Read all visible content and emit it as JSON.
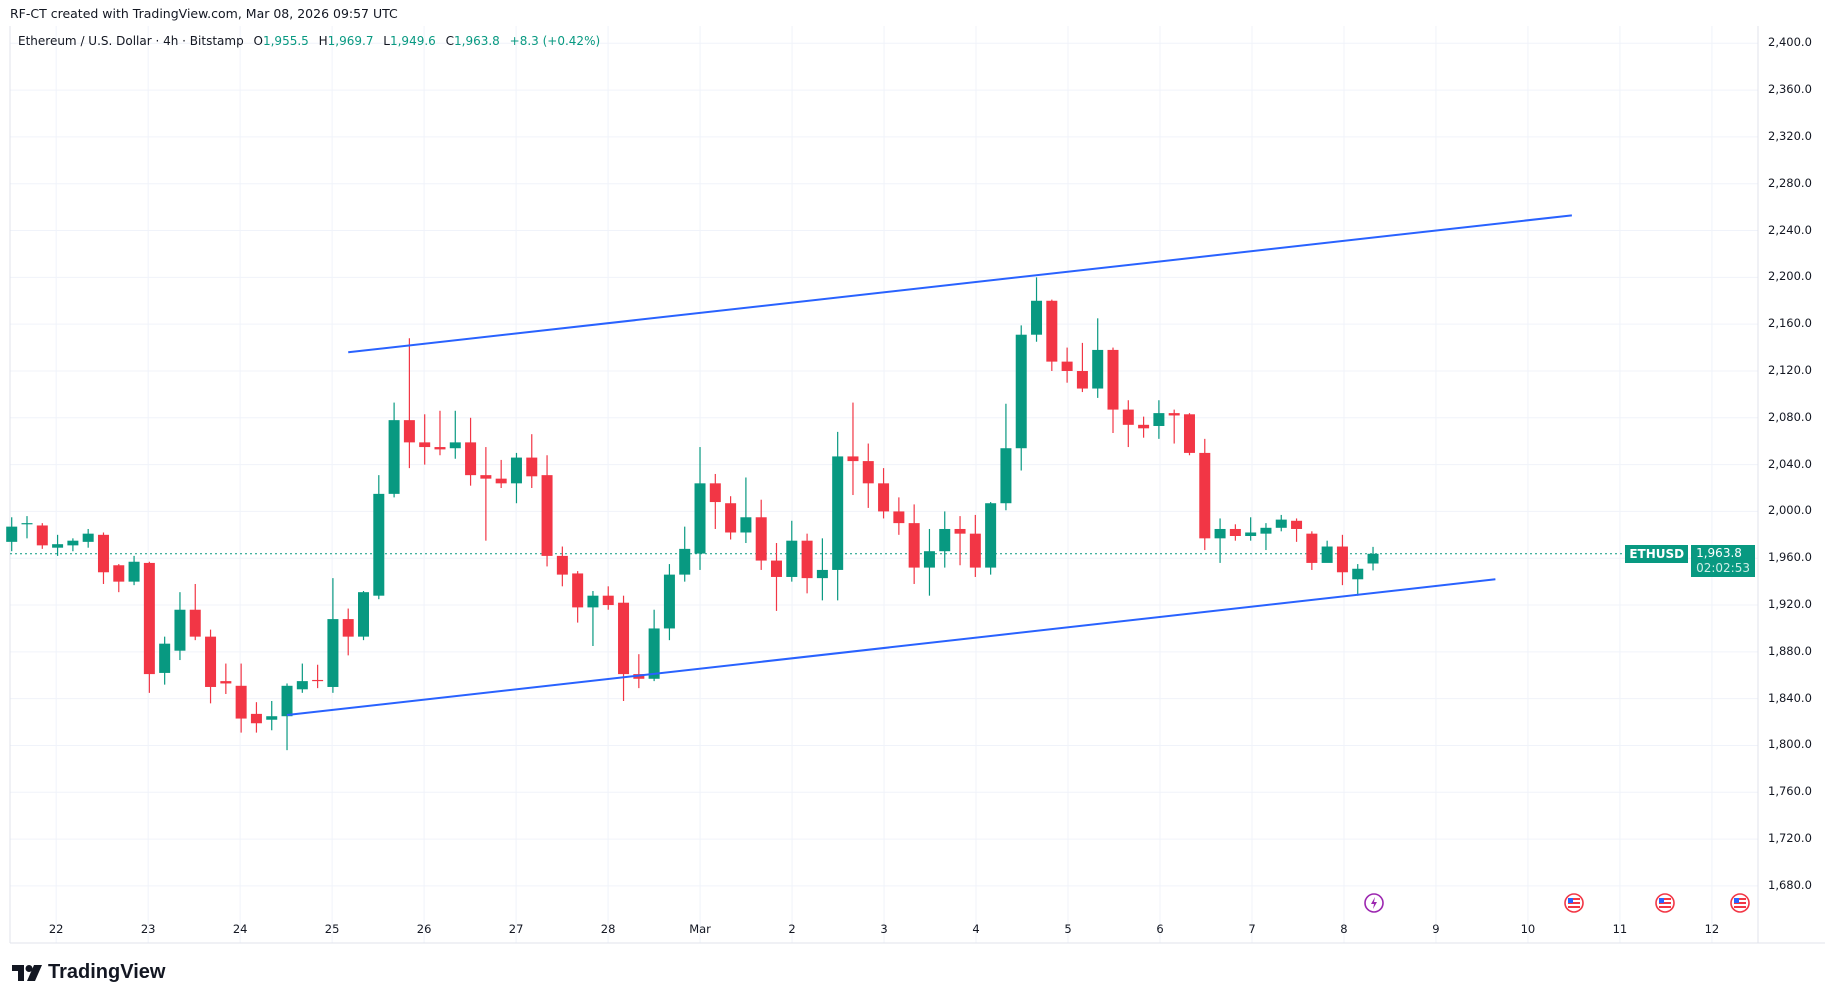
{
  "header": {
    "credit": "RF-CT created with TradingView.com, Mar 08, 2026 09:57 UTC"
  },
  "legend": {
    "symbol": "Ethereum / U.S. Dollar · 4h · Bitstamp",
    "open_label": "O",
    "open": "1,955.5",
    "high_label": "H",
    "high": "1,969.7",
    "low_label": "L",
    "low": "1,949.6",
    "close_label": "C",
    "close": "1,963.8",
    "change": "+8.3 (+0.42%)"
  },
  "price_tag": {
    "symbol": "ETHUSD",
    "price": "1,963.8",
    "countdown": "02:02:53"
  },
  "logo": {
    "text": "TradingView"
  },
  "colors": {
    "up": "#089981",
    "down": "#F23645",
    "trendline": "#2962FF",
    "grid": "#F0F3FA"
  },
  "icons": [
    "lightning-event-icon",
    "us-flag-icon",
    "us-flag-icon",
    "us-flag-icon"
  ],
  "chart_data": {
    "type": "candlestick",
    "interval": "4h",
    "last_price": 1963.8,
    "ylim": [
      1660,
      2420
    ],
    "y_ticks": [
      "2,400.0",
      "2,360.0",
      "2,320.0",
      "2,280.0",
      "2,240.0",
      "2,200.0",
      "2,160.0",
      "2,120.0",
      "2,080.0",
      "2,040.0",
      "2,000.0",
      "1,960.0",
      "1,920.0",
      "1,880.0",
      "1,840.0",
      "1,800.0",
      "1,760.0",
      "1,720.0",
      "1,680.0"
    ],
    "x_ticks": [
      "22",
      "23",
      "24",
      "25",
      "26",
      "27",
      "28",
      "Mar",
      "2",
      "3",
      "4",
      "5",
      "6",
      "7",
      "8",
      "9",
      "10",
      "11",
      "12"
    ],
    "grid": true,
    "ohlc": [
      [
        1974,
        1995,
        1966,
        1987
      ],
      [
        1990,
        1996,
        1977,
        1990
      ],
      [
        1988,
        1990,
        1968,
        1971
      ],
      [
        1969,
        1980,
        1962,
        1972
      ],
      [
        1971,
        1977,
        1966,
        1975
      ],
      [
        1974,
        1985,
        1969,
        1981
      ],
      [
        1980,
        1982,
        1938,
        1948
      ],
      [
        1954,
        1955,
        1931,
        1940
      ],
      [
        1940,
        1962,
        1937,
        1957
      ],
      [
        1956,
        1957,
        1845,
        1861
      ],
      [
        1862,
        1893,
        1852,
        1887
      ],
      [
        1881,
        1931,
        1873,
        1916
      ],
      [
        1916,
        1938,
        1890,
        1893
      ],
      [
        1893,
        1899,
        1836,
        1850
      ],
      [
        1855,
        1870,
        1844,
        1853
      ],
      [
        1851,
        1870,
        1811,
        1823
      ],
      [
        1827,
        1837,
        1811,
        1819
      ],
      [
        1822,
        1838,
        1813,
        1825
      ],
      [
        1825,
        1853,
        1796,
        1851
      ],
      [
        1848,
        1870,
        1845,
        1855
      ],
      [
        1856,
        1869,
        1849,
        1855
      ],
      [
        1850,
        1943,
        1845,
        1908
      ],
      [
        1908,
        1917,
        1877,
        1893
      ],
      [
        1893,
        1932,
        1890,
        1931
      ],
      [
        1928,
        2031,
        1925,
        2015
      ],
      [
        2015,
        2093,
        2012,
        2078
      ],
      [
        2078,
        2148,
        2037,
        2059
      ],
      [
        2059,
        2083,
        2040,
        2055
      ],
      [
        2055,
        2086,
        2048,
        2053
      ],
      [
        2054,
        2086,
        2045,
        2059
      ],
      [
        2059,
        2080,
        2022,
        2031
      ],
      [
        2031,
        2055,
        1975,
        2028
      ],
      [
        2028,
        2044,
        2020,
        2024
      ],
      [
        2024,
        2050,
        2007,
        2046
      ],
      [
        2046,
        2066,
        2020,
        2030
      ],
      [
        2031,
        2048,
        1953,
        1962
      ],
      [
        1962,
        1970,
        1936,
        1946
      ],
      [
        1947,
        1949,
        1905,
        1918
      ],
      [
        1918,
        1932,
        1885,
        1928
      ],
      [
        1928,
        1936,
        1916,
        1920
      ],
      [
        1922,
        1928,
        1838,
        1861
      ],
      [
        1861,
        1878,
        1849,
        1857
      ],
      [
        1857,
        1916,
        1855,
        1900
      ],
      [
        1900,
        1955,
        1890,
        1946
      ],
      [
        1946,
        1987,
        1940,
        1968
      ],
      [
        1964,
        2055,
        1950,
        2024
      ],
      [
        2024,
        2032,
        1985,
        2008
      ],
      [
        2007,
        2013,
        1976,
        1982
      ],
      [
        1982,
        2029,
        1973,
        1995
      ],
      [
        1995,
        2010,
        1950,
        1958
      ],
      [
        1958,
        1973,
        1915,
        1944
      ],
      [
        1944,
        1992,
        1940,
        1975
      ],
      [
        1975,
        1981,
        1930,
        1943
      ],
      [
        1943,
        1977,
        1924,
        1950
      ],
      [
        1950,
        2068,
        1924,
        2047
      ],
      [
        2047,
        2093,
        2014,
        2043
      ],
      [
        2043,
        2058,
        2003,
        2024
      ],
      [
        2024,
        2037,
        1994,
        2000
      ],
      [
        2000,
        2012,
        1980,
        1990
      ],
      [
        1990,
        2006,
        1938,
        1952
      ],
      [
        1952,
        1985,
        1928,
        1966
      ],
      [
        1966,
        2000,
        1952,
        1985
      ],
      [
        1985,
        1996,
        1954,
        1981
      ],
      [
        1981,
        1997,
        1944,
        1952
      ],
      [
        1952,
        2008,
        1946,
        2007
      ],
      [
        2007,
        2092,
        2001,
        2054
      ],
      [
        2054,
        2159,
        2035,
        2151
      ],
      [
        2151,
        2200,
        2145,
        2180
      ],
      [
        2180,
        2181,
        2120,
        2128
      ],
      [
        2128,
        2140,
        2110,
        2120
      ],
      [
        2120,
        2144,
        2102,
        2105
      ],
      [
        2105,
        2165,
        2097,
        2138
      ],
      [
        2138,
        2140,
        2067,
        2087
      ],
      [
        2087,
        2095,
        2055,
        2074
      ],
      [
        2074,
        2081,
        2063,
        2071
      ],
      [
        2073,
        2095,
        2062,
        2084
      ],
      [
        2084,
        2087,
        2058,
        2082
      ],
      [
        2083,
        2084,
        2048,
        2050
      ],
      [
        2050,
        2062,
        1967,
        1977
      ],
      [
        1977,
        1994,
        1956,
        1985
      ],
      [
        1985,
        1989,
        1975,
        1979
      ],
      [
        1979,
        1995,
        1975,
        1982
      ],
      [
        1981,
        1990,
        1967,
        1986
      ],
      [
        1986,
        1997,
        1983,
        1993
      ],
      [
        1992,
        1994,
        1974,
        1985
      ],
      [
        1981,
        1983,
        1950,
        1956
      ],
      [
        1956,
        1975,
        1957,
        1970
      ],
      [
        1970,
        1980,
        1937,
        1948
      ],
      [
        1942,
        1955,
        1928,
        1951
      ],
      [
        1955.5,
        1969.7,
        1949.6,
        1963.8
      ]
    ],
    "trendlines": [
      {
        "start": {
          "bar": 22,
          "price": 2136
        },
        "end": {
          "bar": 102,
          "price": 2253
        }
      },
      {
        "start": {
          "bar": 18,
          "price": 1826
        },
        "end": {
          "bar": 97,
          "price": 1942
        }
      }
    ]
  }
}
